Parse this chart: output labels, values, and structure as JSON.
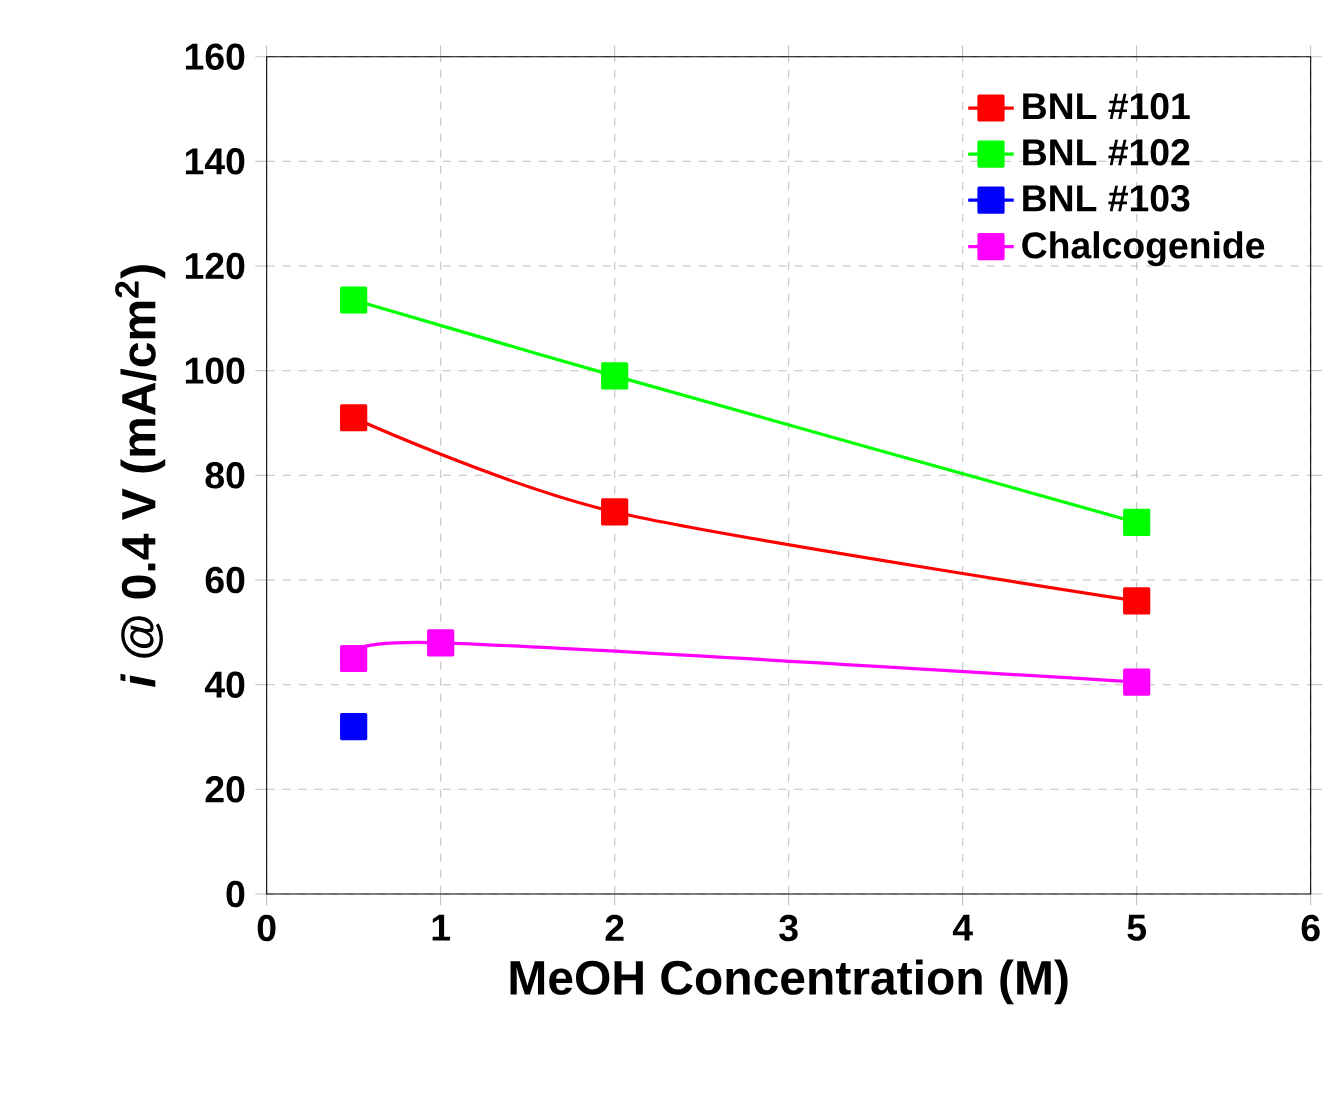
{
  "chart_data": {
    "type": "line",
    "xlabel": "MeOH Concentration (M)",
    "ylabel": "*i* @ 0.4 V (mA/cm$^{2}$)",
    "xlim": [
      0,
      6
    ],
    "ylim": [
      0,
      160
    ],
    "xticks": [
      0,
      1,
      2,
      3,
      4,
      5,
      6
    ],
    "yticks": [
      0,
      20,
      40,
      60,
      80,
      100,
      120,
      140,
      160
    ],
    "grid": true,
    "legend": "top right",
    "marker": "square",
    "line_style": "solid",
    "series": [
      {
        "name": "BNL #101",
        "color": "#ff0000",
        "x": [
          0.5,
          2,
          5
        ],
        "values": [
          91,
          73,
          56
        ]
      },
      {
        "name": "BNL #102",
        "color": "#00ff00",
        "x": [
          0.5,
          2,
          5
        ],
        "values": [
          113.5,
          99,
          71
        ]
      },
      {
        "name": "BNL #103",
        "color": "#0000ff",
        "x": [
          0.5
        ],
        "values": [
          32
        ]
      },
      {
        "name": "Chalcogenide",
        "color": "#ff00ff",
        "x": [
          0.5,
          1,
          5
        ],
        "values": [
          45,
          48,
          40.5
        ]
      }
    ]
  }
}
